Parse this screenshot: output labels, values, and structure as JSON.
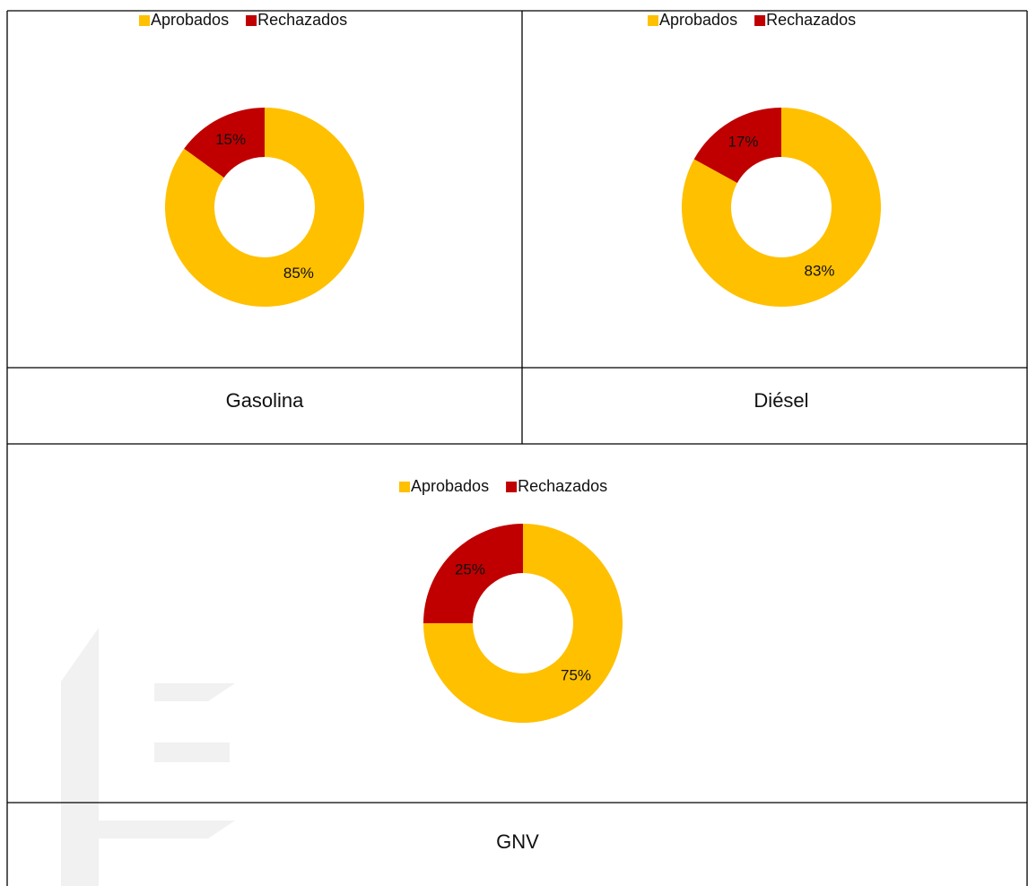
{
  "chart_data": [
    {
      "type": "donut",
      "title": "Gasolina",
      "categories": [
        "Aprobados",
        "Rechazados"
      ],
      "values": [
        85,
        15
      ],
      "value_labels": [
        "85%",
        "15%"
      ],
      "colors": [
        "#ffc000",
        "#c00000"
      ],
      "legend": "top"
    },
    {
      "type": "donut",
      "title": "Diésel",
      "categories": [
        "Aprobados",
        "Rechazados"
      ],
      "values": [
        83,
        17
      ],
      "value_labels": [
        "83%",
        "17%"
      ],
      "colors": [
        "#ffc000",
        "#c00000"
      ],
      "legend": "top"
    },
    {
      "type": "donut",
      "title": "GNV",
      "categories": [
        "Aprobados",
        "Rechazados"
      ],
      "values": [
        75,
        25
      ],
      "value_labels": [
        "75%",
        "25%"
      ],
      "colors": [
        "#ffc000",
        "#c00000"
      ],
      "legend": "top"
    }
  ]
}
